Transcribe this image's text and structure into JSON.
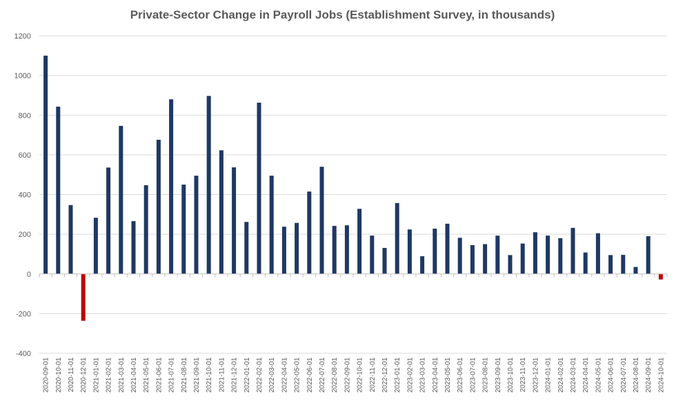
{
  "chart_data": {
    "type": "bar",
    "title": "Private-Sector Change in Payroll Jobs (Establishment Survey, in thousands)",
    "xlabel": "",
    "ylabel": "",
    "ylim": [
      -400,
      1200
    ],
    "yticks": [
      -400,
      -200,
      0,
      200,
      400,
      600,
      800,
      1000,
      1200
    ],
    "grid": true,
    "legend": "none",
    "colors": {
      "positive": "#1f3864",
      "negative": "#c00000",
      "grid": "#d9d9d9",
      "axis": "#bfbfbf",
      "text": "#595959"
    },
    "categories": [
      "2020-09-01",
      "2020-10-01",
      "2020-11-01",
      "2020-12-01",
      "2021-01-01",
      "2021-02-01",
      "2021-03-01",
      "2021-04-01",
      "2021-05-01",
      "2021-06-01",
      "2021-07-01",
      "2021-08-01",
      "2021-09-01",
      "2021-10-01",
      "2021-11-01",
      "2021-12-01",
      "2022-01-01",
      "2022-02-01",
      "2022-03-01",
      "2022-04-01",
      "2022-05-01",
      "2022-06-01",
      "2022-07-01",
      "2022-08-01",
      "2022-09-01",
      "2022-10-01",
      "2022-11-01",
      "2022-12-01",
      "2023-01-01",
      "2023-02-01",
      "2023-03-01",
      "2023-04-01",
      "2023-05-01",
      "2023-06-01",
      "2023-07-01",
      "2023-08-01",
      "2023-09-01",
      "2023-10-01",
      "2023-11-01",
      "2023-12-01",
      "2024-01-01",
      "2024-02-01",
      "2024-03-01",
      "2024-04-01",
      "2024-05-01",
      "2024-06-01",
      "2024-07-01",
      "2024-08-01",
      "2024-09-01",
      "2024-10-01"
    ],
    "values": [
      1100,
      843,
      347,
      -236,
      283,
      536,
      746,
      266,
      447,
      676,
      880,
      450,
      495,
      897,
      623,
      537,
      262,
      863,
      495,
      238,
      257,
      415,
      540,
      242,
      245,
      328,
      193,
      131,
      357,
      224,
      89,
      228,
      253,
      182,
      145,
      150,
      193,
      95,
      153,
      210,
      193,
      180,
      232,
      108,
      205,
      95,
      96,
      35,
      190,
      -28
    ]
  }
}
